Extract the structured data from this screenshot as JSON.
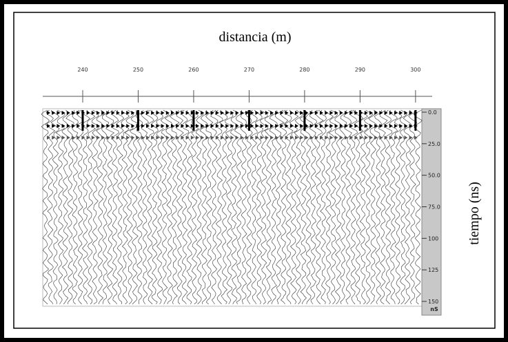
{
  "chart_data": {
    "type": "radargram",
    "title": "distancia (m)",
    "y_label": "tiempo (ns)",
    "y_unit": "nS",
    "xlim": [
      233,
      303
    ],
    "xticks": [
      240,
      250,
      260,
      270,
      280,
      290,
      300
    ],
    "ylim": [
      0,
      150
    ],
    "yticks": [
      {
        "value": 0,
        "label": "0.0"
      },
      {
        "value": 25,
        "label": "25.0"
      },
      {
        "value": 50,
        "label": "50.0"
      },
      {
        "value": 75,
        "label": "75.0"
      },
      100,
      125,
      150
    ]
  }
}
